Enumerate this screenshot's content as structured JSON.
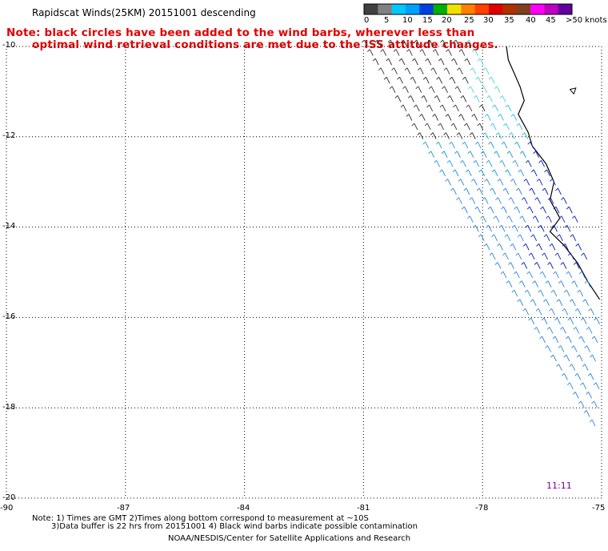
{
  "title": "Rapidscat Winds(25KM) 20151001 descending",
  "note": {
    "line1": "Note: black circles have been added to the wind barbs, wherever less than",
    "line2": "optimal wind retrieval conditions are met due to the ISS attitude changes."
  },
  "legend": {
    "unit_label": ">50 knots",
    "ticks": [
      "0",
      "5",
      "10",
      "15",
      "20",
      "25",
      "30",
      "35",
      "40",
      "45"
    ],
    "colors": [
      "#404040",
      "#808080",
      "#00c8ff",
      "#00a0ff",
      "#0040e0",
      "#00b000",
      "#f0e000",
      "#ff8000",
      "#ff4000",
      "#e00000",
      "#b03000",
      "#804020",
      "#ff00ff",
      "#c000c0",
      "#6000a0"
    ]
  },
  "map": {
    "lat_labels": [
      "-10",
      "-12",
      "-14",
      "-16",
      "-18",
      "-20"
    ],
    "lon_labels": [
      "-90",
      "-87",
      "-84",
      "-81",
      "-78",
      "-75"
    ],
    "lat_range": [
      -20,
      -10
    ],
    "lon_range": [
      -90,
      -75
    ],
    "grid": "dotted",
    "time_label": "11:11",
    "coast_color": "#000000"
  },
  "footer": {
    "line1": "Note: 1) Times are GMT 2)Times along bottom correspond to measurement at ~10S",
    "line2": "3)Data buffer is 22 hrs from 20151001 4) Black wind barbs indicate possible contamination",
    "line3": "NOAA/NESDIS/Center for Satellite Applications and Research"
  }
}
